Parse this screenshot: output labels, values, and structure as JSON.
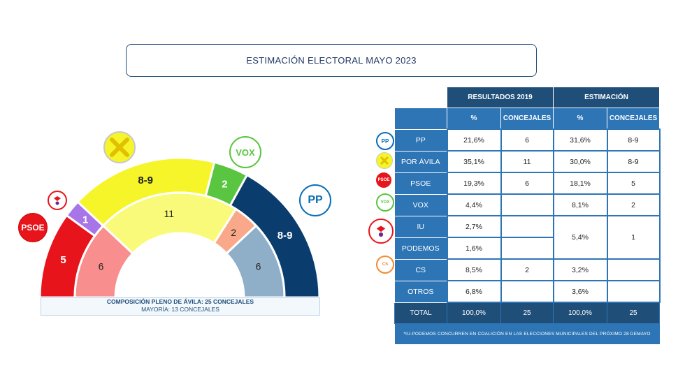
{
  "title": "ESTIMACIÓN ELECTORAL MAYO 2023",
  "composition": {
    "line1": "COMPOSICIÓN PLENO DE ÁVILA: 25 CONCEJALES",
    "line2": "MAYORÍA: 13 CONCEJALES"
  },
  "colors": {
    "psoe_outer": "#e8141b",
    "iu_podemos": "#a875e8",
    "por_avila_outer": "#f5f52a",
    "vox_outer": "#5ac540",
    "pp_outer": "#0a3d6e",
    "psoe_inner": "#f98e8e",
    "por_avila_inner": "#fafa7a",
    "cs_inner": "#f9a98a",
    "pp_inner": "#8fafc9",
    "table_dark": "#1f4e79",
    "table_mid": "#2e75b6"
  },
  "chart_data": {
    "type": "hemicycle",
    "total_seats": 25,
    "majority": 13,
    "rings": [
      {
        "name": "Estimación",
        "segments": [
          {
            "party": "PSOE",
            "label": "5",
            "seats": 5
          },
          {
            "party": "IU-Podemos",
            "label": "1",
            "seats": 1
          },
          {
            "party": "Por Ávila",
            "label": "8-9",
            "seats": 8.5
          },
          {
            "party": "VOX",
            "label": "2",
            "seats": 2
          },
          {
            "party": "PP",
            "label": "8-9",
            "seats": 8.5
          }
        ]
      },
      {
        "name": "Resultados 2019",
        "segments": [
          {
            "party": "PSOE",
            "label": "6",
            "seats": 6
          },
          {
            "party": "Por Ávila",
            "label": "11",
            "seats": 11
          },
          {
            "party": "CS",
            "label": "2",
            "seats": 2
          },
          {
            "party": "PP",
            "label": "6",
            "seats": 6
          }
        ]
      }
    ],
    "table": {
      "group_headers": [
        "RESULTADOS 2019",
        "ESTIMACIÓN"
      ],
      "sub_headers": [
        "%",
        "CONCEJALES",
        "%",
        "CONCEJALES"
      ],
      "rows": [
        {
          "party": "PP",
          "r_pct": "21,6%",
          "r_seats": "6",
          "e_pct": "31,6%",
          "e_seats": "8-9"
        },
        {
          "party": "POR ÁVILA",
          "r_pct": "35,1%",
          "r_seats": "11",
          "e_pct": "30,0%",
          "e_seats": "8-9"
        },
        {
          "party": "PSOE",
          "r_pct": "19,3%",
          "r_seats": "6",
          "e_pct": "18,1%",
          "e_seats": "5"
        },
        {
          "party": "VOX",
          "r_pct": "4,4%",
          "r_seats": "",
          "e_pct": "8,1%",
          "e_seats": "2"
        },
        {
          "party": "IU",
          "r_pct": "2,7%",
          "r_seats": ""
        },
        {
          "party": "PODEMOS",
          "r_pct": "1,6%",
          "r_seats": ""
        },
        {
          "party": "CS",
          "r_pct": "8,5%",
          "r_seats": "2",
          "e_pct": "3,2%",
          "e_seats": ""
        },
        {
          "party": "OTROS",
          "r_pct": "6,8%",
          "r_seats": "",
          "e_pct": "3,6%",
          "e_seats": ""
        }
      ],
      "iu_podemos_estimate": {
        "e_pct": "5,4%",
        "e_seats": "1"
      },
      "total": {
        "label": "TOTAL",
        "r_pct": "100,0%",
        "r_seats": "25",
        "e_pct": "100,0%",
        "e_seats": "25"
      },
      "footnote": "*IU-PODEMOS CONCURREN EN COALICIÓN EN LAS ELECCIONES MUNICIPALES DEL PRÓXIMO 28 DEMAYO"
    }
  },
  "logos": {
    "psoe": "PSOE",
    "vox": "VOX",
    "pp": "PP",
    "cs": "CS",
    "por_avila": "",
    "iu_podemos": ""
  }
}
